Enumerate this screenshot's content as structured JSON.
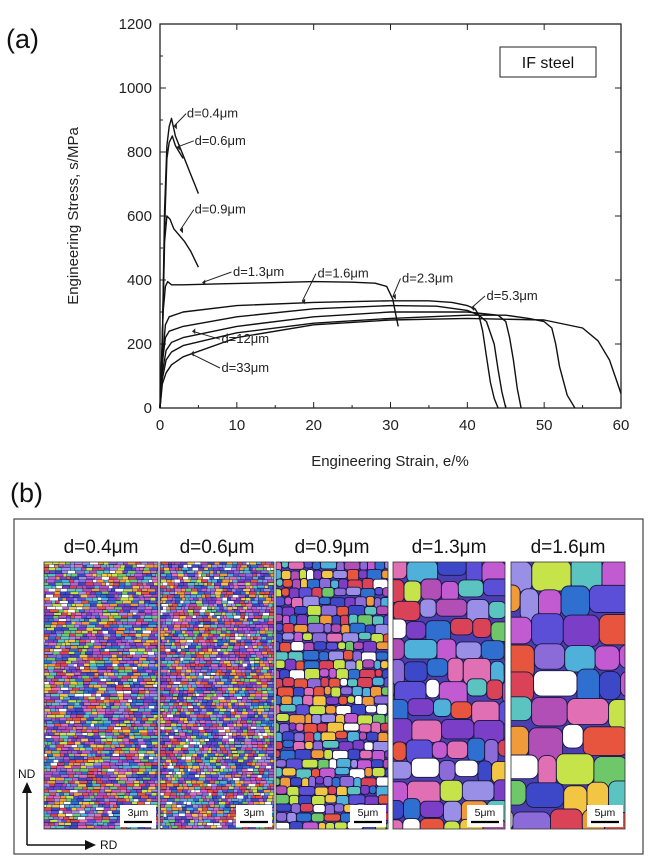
{
  "panel_a_label": "(a)",
  "panel_b_label": "(b)",
  "chart_data": {
    "type": "line",
    "title": "",
    "legend_box": "IF steel",
    "xlabel": "Engineering Strain, e/%",
    "ylabel": "Engineering Stress, s/MPa",
    "xlim": [
      0,
      60
    ],
    "ylim": [
      0,
      1200
    ],
    "xticks": [
      "0",
      "10",
      "20",
      "30",
      "40",
      "50",
      "60"
    ],
    "yticks": [
      "0",
      "200",
      "400",
      "600",
      "800",
      "1000",
      "1200"
    ],
    "grid": false,
    "series": [
      {
        "name": "d=0.4μm",
        "x": [
          0,
          0.3,
          0.6,
          0.9,
          1.2,
          1.5,
          2.0,
          2.5,
          3.0,
          3.5,
          4.0,
          4.5,
          5.0
        ],
        "y": [
          0,
          200,
          620,
          820,
          880,
          905,
          850,
          820,
          790,
          760,
          730,
          700,
          670
        ]
      },
      {
        "name": "d=0.6μm",
        "x": [
          0,
          0.3,
          0.6,
          0.9,
          1.2,
          1.6,
          2.0,
          2.5,
          3.0
        ],
        "y": [
          0,
          200,
          560,
          780,
          830,
          850,
          820,
          800,
          780
        ]
      },
      {
        "name": "d=0.9μm",
        "x": [
          0,
          0.3,
          0.6,
          0.9,
          1.3,
          1.8,
          2.5,
          3.2,
          4.0,
          5.0
        ],
        "y": [
          0,
          200,
          520,
          600,
          590,
          560,
          540,
          520,
          490,
          440
        ]
      },
      {
        "name": "d=1.3μm",
        "x": [
          0,
          0.2,
          0.4,
          0.7,
          1.0,
          1.5,
          3,
          8,
          15,
          20,
          25,
          28,
          29.5,
          30.3,
          30.7,
          31
        ],
        "y": [
          0,
          150,
          300,
          380,
          395,
          385,
          385,
          388,
          392,
          395,
          393,
          390,
          380,
          340,
          290,
          255
        ]
      },
      {
        "name": "d=1.6μm",
        "x": [
          0,
          0.3,
          0.7,
          1.2,
          3,
          10,
          20,
          30,
          35,
          38,
          40,
          41,
          41.5,
          42,
          42.5,
          43,
          43.5,
          44
        ],
        "y": [
          0,
          150,
          260,
          285,
          300,
          320,
          330,
          335,
          335,
          330,
          320,
          310,
          290,
          240,
          160,
          80,
          30,
          0
        ]
      },
      {
        "name": "d=2.3μm",
        "x": [
          0,
          0.3,
          0.7,
          1.2,
          3,
          10,
          20,
          30,
          36,
          40,
          41.5,
          42.5,
          43.5,
          44,
          44.5,
          45
        ],
        "y": [
          0,
          140,
          220,
          240,
          255,
          285,
          310,
          320,
          318,
          305,
          290,
          270,
          200,
          120,
          50,
          0
        ]
      },
      {
        "name": "d=5.3μm",
        "x": [
          0,
          0.3,
          0.8,
          1.5,
          3,
          10,
          20,
          30,
          40,
          44,
          45,
          45.5,
          46,
          46.5,
          47
        ],
        "y": [
          0,
          110,
          180,
          205,
          220,
          255,
          285,
          300,
          300,
          290,
          270,
          220,
          150,
          60,
          0
        ]
      },
      {
        "name": "d=12μm",
        "x": [
          0,
          0.3,
          0.8,
          1.5,
          3,
          10,
          20,
          30,
          40,
          45,
          48,
          50,
          51,
          51.5,
          52,
          53,
          54
        ],
        "y": [
          0,
          90,
          150,
          175,
          195,
          235,
          265,
          280,
          290,
          290,
          280,
          270,
          250,
          200,
          130,
          40,
          0
        ]
      },
      {
        "name": "d=33μm",
        "x": [
          0,
          0.3,
          0.8,
          1.5,
          3,
          10,
          20,
          30,
          40,
          50,
          55,
          57,
          58.5,
          59.5,
          60
        ],
        "y": [
          0,
          75,
          110,
          135,
          160,
          220,
          260,
          275,
          280,
          275,
          250,
          210,
          150,
          80,
          45
        ]
      }
    ],
    "annotations": [
      {
        "text": "d=0.4μm",
        "x": 3.5,
        "y": 920
      },
      {
        "text": "d=0.6μm",
        "x": 4.5,
        "y": 835
      },
      {
        "text": "d=0.9μm",
        "x": 4.5,
        "y": 620
      },
      {
        "text": "d=1.3μm",
        "x": 9.5,
        "y": 425
      },
      {
        "text": "d=1.6μm",
        "x": 20.5,
        "y": 420
      },
      {
        "text": "d=2.3μm",
        "x": 31.5,
        "y": 405
      },
      {
        "text": "d=5.3μm",
        "x": 42.5,
        "y": 350
      },
      {
        "text": "d=12μm",
        "x": 8,
        "y": 215
      },
      {
        "text": "d=33μm",
        "x": 8,
        "y": 125
      }
    ]
  },
  "ebsd_maps": {
    "titles": [
      "d=0.4μm",
      "d=0.6μm",
      "d=0.9μm",
      "d=1.3μm",
      "d=1.6μm"
    ],
    "scale_bars": [
      "3μm",
      "3μm",
      "5μm",
      "5μm",
      "5μm"
    ],
    "axis_nd": "ND",
    "axis_rd": "RD"
  },
  "colors": {
    "axis": "#222222",
    "line": "#111111",
    "grain_palette": [
      "#3d48c9",
      "#5a4fd6",
      "#7b3fc7",
      "#c25bd1",
      "#e06fb3",
      "#d94257",
      "#e8553e",
      "#f09a3a",
      "#4fb0d9",
      "#2f6fd0",
      "#8b6bd8",
      "#b24fb7",
      "#6ec86a",
      "#c7e34a",
      "#f2c542",
      "#ffffff",
      "#9a8fe6",
      "#5cc4c0"
    ]
  }
}
